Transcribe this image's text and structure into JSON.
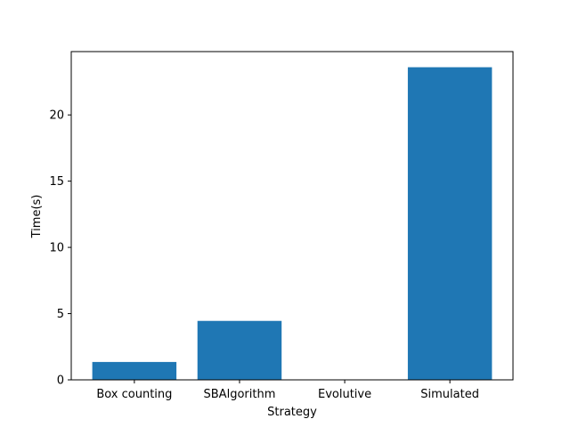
{
  "chart_data": {
    "type": "bar",
    "categories": [
      "Box counting",
      "SBAlgorithm",
      "Evolutive",
      "Simulated"
    ],
    "values": [
      1.35,
      4.45,
      0.0,
      23.6
    ],
    "xlabel": "Strategy",
    "ylabel": "Time(s)",
    "ylim": [
      0,
      24.78
    ],
    "yticks": [
      0,
      5,
      10,
      15,
      20
    ],
    "grid": false,
    "legend": "none",
    "bar_color": "#1f77b4"
  }
}
